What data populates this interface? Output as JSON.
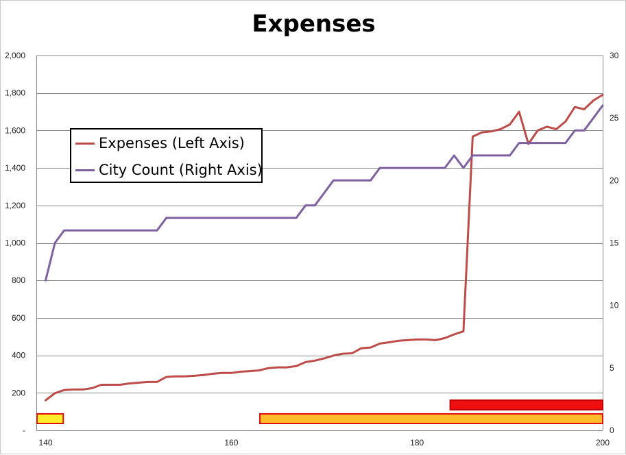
{
  "chart_data": {
    "type": "line",
    "title": "Expenses",
    "xlabel": "",
    "ylabel": "",
    "y2label": "",
    "x": [
      140,
      141,
      142,
      143,
      144,
      145,
      146,
      147,
      148,
      149,
      150,
      151,
      152,
      153,
      154,
      155,
      156,
      157,
      158,
      159,
      160,
      161,
      162,
      163,
      164,
      165,
      166,
      167,
      168,
      169,
      170,
      171,
      172,
      173,
      174,
      175,
      176,
      177,
      178,
      179,
      180,
      181,
      182,
      183,
      184,
      185,
      186,
      187,
      188,
      189,
      190,
      191,
      192,
      193,
      194,
      195,
      196,
      197,
      198,
      199,
      200
    ],
    "xlim": [
      139,
      200
    ],
    "xticks": [
      140,
      160,
      180,
      200
    ],
    "xtick_labels": [
      "140",
      "160",
      "180",
      "200"
    ],
    "ylim": [
      0,
      2000
    ],
    "yticks": [
      0,
      200,
      400,
      600,
      800,
      1000,
      1200,
      1400,
      1600,
      1800,
      2000
    ],
    "ytick_labels": [
      "-",
      "200",
      "400",
      "600",
      "800",
      "1,000",
      "1,200",
      "1,400",
      "1,600",
      "1,800",
      "2,000"
    ],
    "y2lim": [
      0,
      30
    ],
    "y2ticks": [
      0,
      5,
      10,
      15,
      20,
      25,
      30
    ],
    "y2tick_labels": [
      "0",
      "5",
      "10",
      "15",
      "20",
      "25",
      "30"
    ],
    "grid": true,
    "legend_position": "upper-left",
    "series": [
      {
        "name": "Expenses (Left Axis)",
        "axis": "left",
        "color": "#be4b48",
        "values": [
          160,
          198,
          215,
          218,
          218,
          225,
          243,
          243,
          243,
          250,
          254,
          258,
          258,
          285,
          288,
          288,
          291,
          295,
          302,
          306,
          306,
          313,
          316,
          320,
          332,
          336,
          336,
          343,
          364,
          372,
          384,
          399,
          409,
          411,
          438,
          442,
          463,
          470,
          478,
          481,
          485,
          485,
          481,
          492,
          512,
          528,
          1567,
          1590,
          1595,
          1607,
          1632,
          1700,
          1528,
          1600,
          1620,
          1607,
          1648,
          1725,
          1713,
          1760,
          1790
        ]
      },
      {
        "name": "City Count (Right Axis)",
        "axis": "right",
        "color": "#7d60a0",
        "values": [
          12,
          15,
          16,
          16,
          16,
          16,
          16,
          16,
          16,
          16,
          16,
          16,
          16,
          17,
          17,
          17,
          17,
          17,
          17,
          17,
          17,
          17,
          17,
          17,
          17,
          17,
          17,
          17,
          18,
          18,
          19,
          20,
          20,
          20,
          20,
          20,
          21,
          21,
          21,
          21,
          21,
          21,
          21,
          21,
          22,
          21,
          22,
          22,
          22,
          22,
          22,
          23,
          23,
          23,
          23,
          23,
          23,
          24,
          24,
          25,
          26
        ]
      }
    ],
    "range_bars": [
      {
        "start": 139,
        "end": 141.9,
        "level": "lower",
        "fill": "#ffee2a",
        "stroke": "#e01010"
      },
      {
        "start": 163,
        "end": 200,
        "level": "lower",
        "fill": "#ffbb2a",
        "stroke": "#e01010"
      },
      {
        "start": 183.5,
        "end": 200,
        "level": "upper",
        "fill": "#ee1010",
        "stroke": "#c00000"
      }
    ]
  }
}
